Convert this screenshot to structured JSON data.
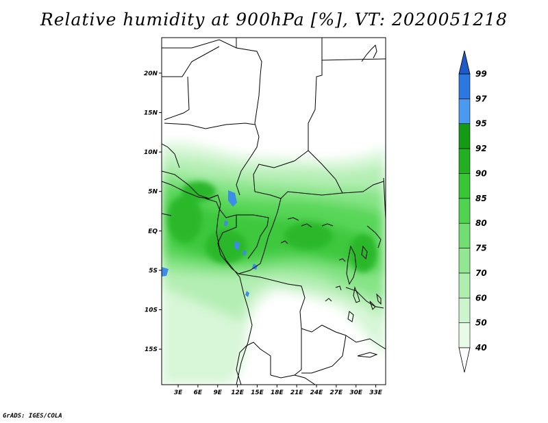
{
  "title": "Relative humidity at 900hPa [%], VT: 2020051218",
  "credit": "GrADS: IGES/COLA",
  "map": {
    "lon_labels": [
      "3E",
      "6E",
      "9E",
      "12E",
      "15E",
      "18E",
      "21E",
      "24E",
      "27E",
      "30E",
      "33E"
    ],
    "lon_values": [
      3,
      6,
      9,
      12,
      15,
      18,
      21,
      24,
      27,
      30,
      33
    ],
    "lat_labels": [
      "20N",
      "15N",
      "10N",
      "5N",
      "EQ",
      "5S",
      "10S",
      "15S"
    ],
    "lat_values": [
      20,
      15,
      10,
      5,
      0,
      -5,
      -10,
      -15
    ],
    "lon_range": [
      0.5,
      34.5
    ],
    "lat_range": [
      -19.5,
      24.5
    ]
  },
  "colorbar": {
    "levels": [
      "40",
      "50",
      "60",
      "70",
      "75",
      "80",
      "85",
      "90",
      "92",
      "95",
      "97",
      "99"
    ],
    "colors": [
      "#ffffff",
      "#e8fbe8",
      "#cdf5cd",
      "#b0eeb0",
      "#92e892",
      "#72de72",
      "#50d450",
      "#36c636",
      "#22b022",
      "#149a14",
      "#4a9af0",
      "#2a78e0",
      "#1e5ac8"
    ]
  }
}
